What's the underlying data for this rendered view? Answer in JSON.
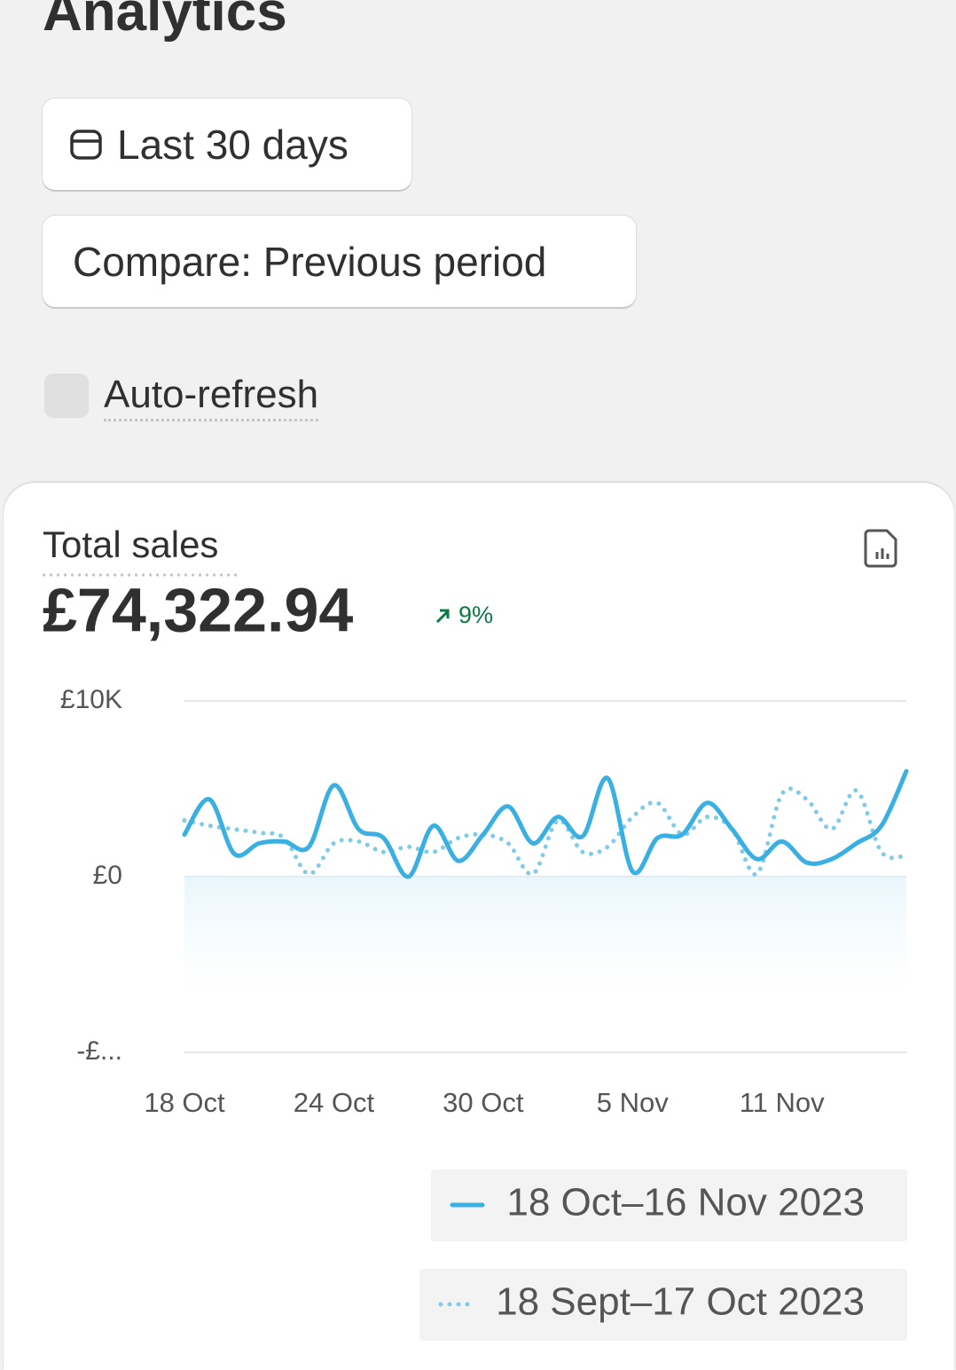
{
  "page": {
    "title": "Analytics",
    "date_button": "Last 30 days",
    "compare_button": "Compare: Previous period",
    "auto_refresh": "Auto-refresh"
  },
  "chart_data": {
    "type": "line",
    "title": "Total sales",
    "total": "£74,322.94",
    "change": "9%",
    "categories": [
      "18 Oct",
      null,
      null,
      null,
      null,
      null,
      "24 Oct",
      null,
      null,
      null,
      null,
      null,
      "30 Oct",
      null,
      null,
      null,
      null,
      null,
      "5 Nov",
      null,
      null,
      null,
      null,
      null,
      "11 Nov",
      null,
      null,
      null,
      null,
      null
    ],
    "ylim": [
      -10000,
      10000
    ],
    "yticks": [
      {
        "value": 10000,
        "label": "£10K"
      },
      {
        "value": 0,
        "label": "£0"
      },
      {
        "value": -10000,
        "label": "-£..."
      }
    ],
    "grid": true,
    "series": [
      {
        "name": "18 Oct–16 Nov 2023",
        "color": "#3ab0e2",
        "style": "solid",
        "values": [
          2400,
          4400,
          1300,
          1900,
          2000,
          1700,
          5200,
          2700,
          2200,
          0,
          2900,
          900,
          2400,
          4000,
          1900,
          3400,
          2300,
          5600,
          300,
          2200,
          2400,
          4200,
          2700,
          1000,
          2000,
          800,
          1000,
          1900,
          2900,
          6000
        ]
      },
      {
        "name": "18 Sept–17 Oct 2023",
        "color": "#7fcbe9",
        "style": "dotted",
        "values": [
          3200,
          2900,
          2700,
          2500,
          2200,
          150,
          1900,
          2000,
          1400,
          1700,
          1400,
          2200,
          2400,
          1900,
          150,
          3200,
          1400,
          1700,
          3400,
          4200,
          2400,
          3400,
          2700,
          150,
          4700,
          4400,
          2700,
          4900,
          1400,
          1200
        ]
      }
    ]
  }
}
